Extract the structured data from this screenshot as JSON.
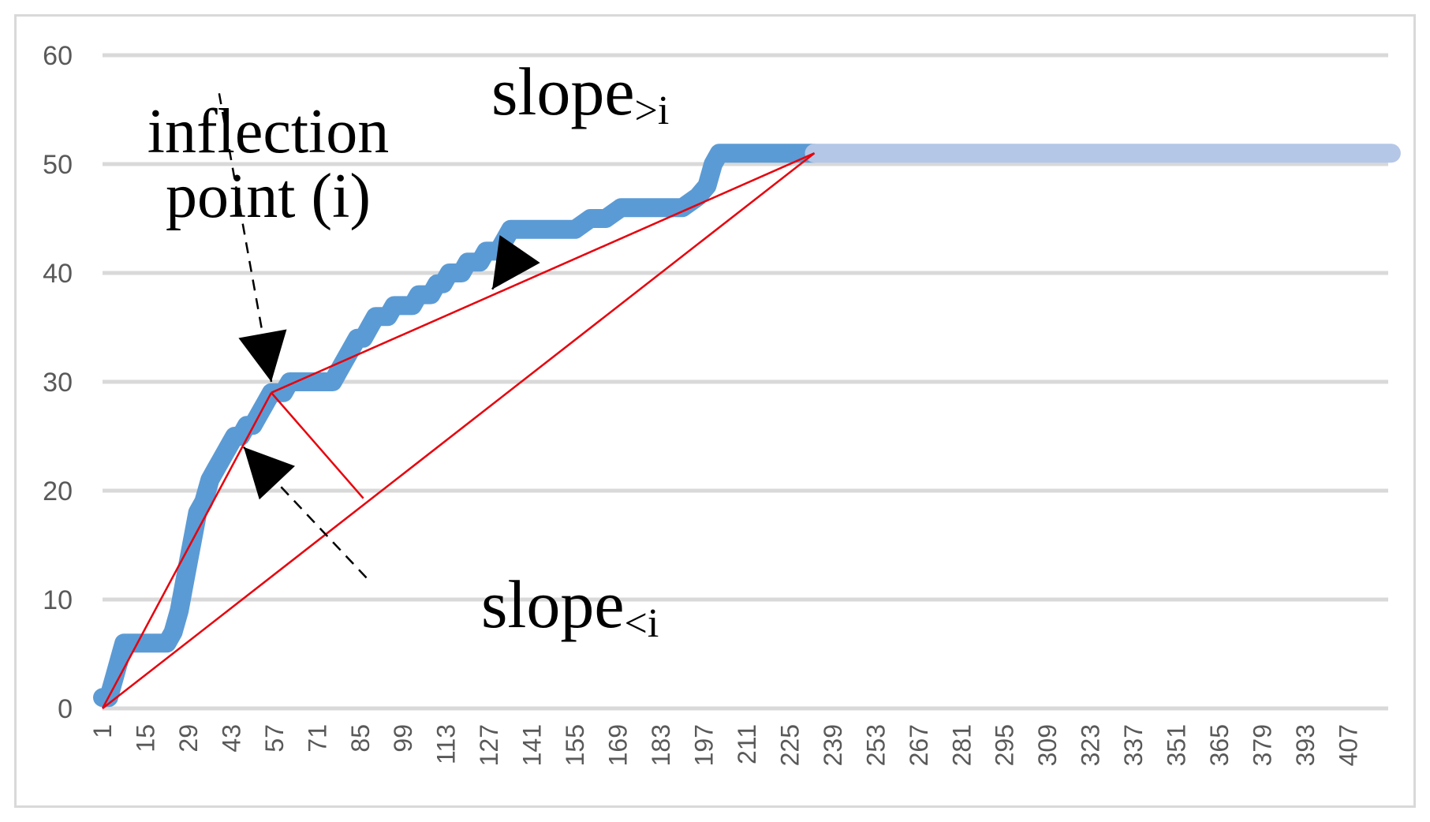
{
  "chart_data": {
    "type": "line",
    "title": "",
    "xlabel": "",
    "ylabel": "",
    "ylim": [
      0,
      60
    ],
    "y_ticks": [
      "0",
      "10",
      "20",
      "30",
      "40",
      "50",
      "60"
    ],
    "x_ticks": [
      "1",
      "15",
      "29",
      "43",
      "57",
      "71",
      "85",
      "99",
      "113",
      "127",
      "141",
      "155",
      "169",
      "183",
      "197",
      "211",
      "225",
      "239",
      "253",
      "267",
      "281",
      "295",
      "309",
      "323",
      "337",
      "351",
      "365",
      "379",
      "393",
      "407"
    ],
    "x_range": [
      1,
      420
    ],
    "grid": true,
    "legend": "none",
    "series": [
      {
        "color": "#5b9bd5",
        "points": [
          [
            1,
            1
          ],
          [
            3,
            1
          ],
          [
            5,
            3
          ],
          [
            7,
            5
          ],
          [
            8,
            6
          ],
          [
            10,
            6
          ],
          [
            12,
            6
          ],
          [
            14,
            6
          ],
          [
            16,
            6
          ],
          [
            18,
            6
          ],
          [
            20,
            6
          ],
          [
            22,
            6
          ],
          [
            24,
            7
          ],
          [
            26,
            9
          ],
          [
            28,
            12
          ],
          [
            30,
            15
          ],
          [
            32,
            18
          ],
          [
            34,
            19
          ],
          [
            36,
            21
          ],
          [
            38,
            22
          ],
          [
            40,
            23
          ],
          [
            42,
            24
          ],
          [
            44,
            25
          ],
          [
            46,
            25
          ],
          [
            48,
            26
          ],
          [
            50,
            26
          ],
          [
            52,
            27
          ],
          [
            54,
            28
          ],
          [
            56,
            29
          ],
          [
            58,
            29
          ],
          [
            60,
            29
          ],
          [
            62,
            30
          ],
          [
            64,
            30
          ],
          [
            66,
            30
          ],
          [
            68,
            30
          ],
          [
            70,
            30
          ],
          [
            72,
            30
          ],
          [
            74,
            30
          ],
          [
            76,
            30
          ],
          [
            78,
            31
          ],
          [
            80,
            32
          ],
          [
            82,
            33
          ],
          [
            84,
            34
          ],
          [
            86,
            34
          ],
          [
            88,
            35
          ],
          [
            90,
            36
          ],
          [
            92,
            36
          ],
          [
            94,
            36
          ],
          [
            96,
            37
          ],
          [
            98,
            37
          ],
          [
            100,
            37
          ],
          [
            102,
            37
          ],
          [
            104,
            38
          ],
          [
            106,
            38
          ],
          [
            108,
            38
          ],
          [
            110,
            39
          ],
          [
            112,
            39
          ],
          [
            114,
            40
          ],
          [
            116,
            40
          ],
          [
            118,
            40
          ],
          [
            120,
            41
          ],
          [
            122,
            41
          ],
          [
            124,
            41
          ],
          [
            126,
            42
          ],
          [
            128,
            42
          ],
          [
            130,
            42
          ],
          [
            132,
            43
          ],
          [
            134,
            44
          ],
          [
            136,
            44
          ],
          [
            140,
            44
          ],
          [
            145,
            44
          ],
          [
            150,
            44
          ],
          [
            155,
            44
          ],
          [
            160,
            45
          ],
          [
            165,
            45
          ],
          [
            170,
            46
          ],
          [
            175,
            46
          ],
          [
            180,
            46
          ],
          [
            185,
            46
          ],
          [
            190,
            46
          ],
          [
            195,
            47
          ],
          [
            198,
            48
          ],
          [
            200,
            50
          ],
          [
            202,
            51
          ],
          [
            205,
            51
          ],
          [
            210,
            51
          ],
          [
            215,
            51
          ],
          [
            220,
            51
          ],
          [
            225,
            51
          ],
          [
            230,
            51
          ],
          [
            233,
            51
          ]
        ]
      },
      {
        "color": "#b4c7e7",
        "points": [
          [
            233,
            51
          ],
          [
            421,
            51
          ]
        ]
      }
    ],
    "annotations": {
      "inflection_label": [
        "inflection",
        "point (i)"
      ],
      "slope_after": {
        "base": "slope",
        "subscript": ">i"
      },
      "slope_before": {
        "base": "slope",
        "subscript": "<i"
      }
    },
    "overlay_lines": {
      "color": "#e8000b",
      "segments": [
        [
          [
            1,
            0
          ],
          [
            56,
            29
          ]
        ],
        [
          [
            56,
            29
          ],
          [
            233,
            51
          ]
        ],
        [
          [
            1,
            0
          ],
          [
            233,
            51
          ]
        ],
        [
          [
            56,
            29
          ],
          [
            86,
            19.3
          ]
        ]
      ]
    },
    "pointer_arrows": [
      {
        "from": [
          39,
          56.5
        ],
        "to": [
          56,
          30
        ]
      },
      {
        "from": [
          137,
          42.2
        ],
        "to": [
          128,
          38.5
        ]
      },
      {
        "from": [
          87,
          12
        ],
        "to": [
          47,
          24
        ]
      }
    ]
  }
}
